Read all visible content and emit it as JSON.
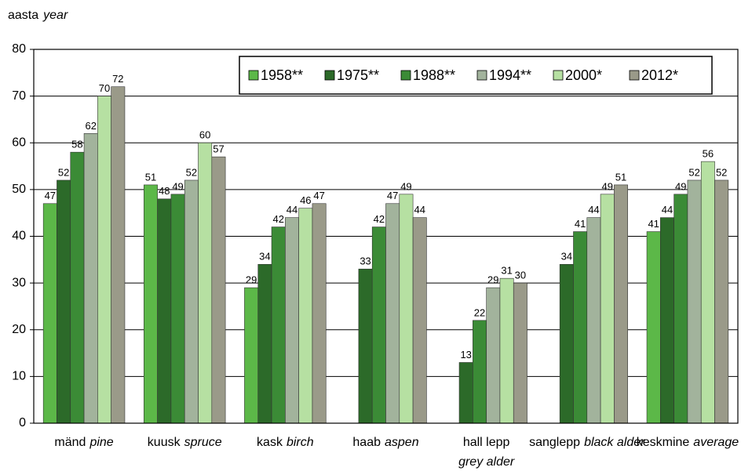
{
  "chart_data": {
    "type": "bar",
    "y_label": {
      "et": "aasta",
      "en": "year"
    },
    "categories": [
      {
        "et": "mänd",
        "en": "pine"
      },
      {
        "et": "kuusk",
        "en": "spruce"
      },
      {
        "et": "kask",
        "en": "birch"
      },
      {
        "et": "haab",
        "en": "aspen"
      },
      {
        "et": "hall lepp",
        "en": "grey alder"
      },
      {
        "et": "sanglepp",
        "en": "black alder"
      },
      {
        "et": "keskmine",
        "en": "average"
      }
    ],
    "series": [
      {
        "name": "1958**",
        "color": "#5cb848",
        "values": [
          47,
          51,
          29,
          null,
          null,
          null,
          41
        ]
      },
      {
        "name": "1975**",
        "color": "#2c6a29",
        "values": [
          52,
          48,
          34,
          33,
          13,
          34,
          44
        ]
      },
      {
        "name": "1988**",
        "color": "#3b8b36",
        "values": [
          58,
          49,
          42,
          42,
          22,
          41,
          49
        ]
      },
      {
        "name": "1994**",
        "color": "#a2b39c",
        "values": [
          62,
          52,
          44,
          47,
          29,
          44,
          52
        ]
      },
      {
        "name": "2000*",
        "color": "#b6e0a2",
        "values": [
          70,
          60,
          46,
          49,
          31,
          49,
          56
        ]
      },
      {
        "name": "2012*",
        "color": "#9a9a89",
        "values": [
          72,
          57,
          47,
          44,
          30,
          51,
          52
        ]
      }
    ],
    "ylim": [
      0,
      80
    ],
    "yticks": [
      0,
      10,
      20,
      30,
      40,
      50,
      60,
      70,
      80
    ],
    "grid": true,
    "legend": "top-right"
  }
}
